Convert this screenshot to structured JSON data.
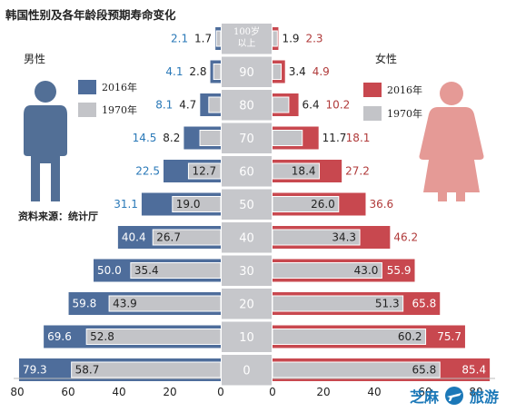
{
  "title": "韩国性别及各年龄段预期寿命变化",
  "male": {
    "label": "男性",
    "legend": [
      {
        "label": "2016年",
        "color": "#4e6d9b"
      },
      {
        "label": "1970年",
        "color": "#c3c4c8"
      }
    ]
  },
  "female": {
    "label": "女性",
    "legend": [
      {
        "label": "2016年",
        "color": "#c8484f"
      },
      {
        "label": "1970年",
        "color": "#c3c4c8"
      }
    ]
  },
  "source": "资料来源：统计厅",
  "watermark": {
    "text_left": "芝麻",
    "text_right": "旅游"
  },
  "colors": {
    "male_2016": "#4e6d9b",
    "female_2016": "#c8484f",
    "y1970": "#c3c4c8",
    "center_box": "#c6c7cb",
    "male_value_text": "#2a79b8",
    "female_value_text": "#b03a3a",
    "dark_text": "#222222",
    "male_figure": "#526f96",
    "female_figure": "#e59a96"
  },
  "chart_data": {
    "type": "bar",
    "orientation": "horizontal",
    "layout": "butterfly",
    "categories": [
      "100岁以上",
      "90",
      "80",
      "70",
      "60",
      "50",
      "40",
      "30",
      "20",
      "10",
      "0"
    ],
    "category_display": [
      [
        "100岁",
        "以上"
      ],
      [
        "90"
      ],
      [
        "80"
      ],
      [
        "70"
      ],
      [
        "60"
      ],
      [
        "50"
      ],
      [
        "40"
      ],
      [
        "30"
      ],
      [
        "20"
      ],
      [
        "10"
      ],
      [
        "0"
      ]
    ],
    "series": [
      {
        "name": "2016年",
        "group": "男性",
        "values": [
          2.1,
          4.1,
          8.1,
          14.5,
          22.5,
          31.1,
          40.4,
          50.0,
          59.8,
          69.6,
          79.3
        ]
      },
      {
        "name": "1970年",
        "group": "男性",
        "values": [
          1.7,
          2.8,
          4.7,
          8.2,
          12.7,
          19.0,
          26.7,
          35.4,
          43.9,
          52.8,
          58.7
        ]
      },
      {
        "name": "2016年",
        "group": "女性",
        "values": [
          2.3,
          4.9,
          10.2,
          18.1,
          27.2,
          36.6,
          46.2,
          55.9,
          65.8,
          75.7,
          85.4
        ]
      },
      {
        "name": "1970年",
        "group": "女性",
        "values": [
          1.9,
          3.4,
          6.4,
          11.7,
          18.4,
          26.0,
          34.3,
          43.0,
          51.3,
          60.2,
          65.8
        ]
      }
    ],
    "value_labels": {
      "male_2016": [
        "2.1",
        "4.1",
        "8.1",
        "14.5",
        "22.5",
        "31.1",
        "40.4",
        "50.0",
        "59.8",
        "69.6",
        "79.3"
      ],
      "male_1970": [
        "1.7",
        "2.8",
        "4.7",
        "8.2",
        "12.7",
        "19.0",
        "26.7",
        "35.4",
        "43.9",
        "52.8",
        "58.7"
      ],
      "female_2016": [
        "2.3",
        "4.9",
        "10.2",
        "18.1",
        "27.2",
        "36.6",
        "46.2",
        "55.9",
        "65.8",
        "75.7",
        "85.4"
      ],
      "female_1970": [
        "1.9",
        "3.4",
        "6.4",
        "11.7",
        "18.4",
        "26.0",
        "34.3",
        "43.0",
        "51.3",
        "60.2",
        "65.8"
      ]
    },
    "x_ticks_left": [
      "80",
      "60",
      "40",
      "20",
      "0"
    ],
    "x_ticks_right": [
      "0",
      "20",
      "40",
      "60",
      "80"
    ],
    "xlim": [
      0,
      88
    ],
    "grid": false
  }
}
